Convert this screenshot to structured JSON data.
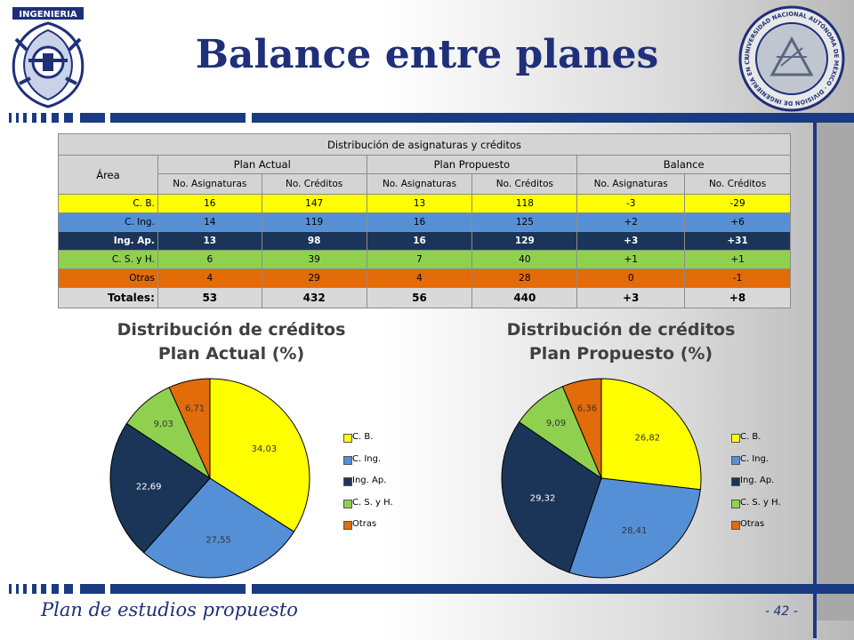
{
  "header": {
    "title": "Balance entre planes"
  },
  "logos": {
    "left_text": "INGENIERIA",
    "right_text": "UNIVERSIDAD NACIONAL AUTÓNOMA DE MÉXICO · DIVISIÓN DE INGENIERÍA EN CIENCIAS DE LA TIERRA"
  },
  "footer": {
    "title": "Plan de estudios propuesto",
    "page": "- 42 -"
  },
  "colors": {
    "cb": "#ffff00",
    "cing": "#5590d6",
    "ingap": "#1b3558",
    "csyh": "#8fd14f",
    "otras": "#e26b0a",
    "navy": "#1a3a82"
  },
  "table": {
    "title": "Distribución de asignaturas y créditos",
    "area_header": "Área",
    "groups": [
      "Plan Actual",
      "Plan Propuesto",
      "Balance"
    ],
    "subheaders": [
      "No. Asignaturas",
      "No. Créditos",
      "No. Asignaturas",
      "No. Créditos",
      "No. Asignaturas",
      "No. Créditos"
    ],
    "rows": [
      {
        "area": "C. B.",
        "cells": [
          "16",
          "147",
          "13",
          "118",
          "-3",
          "-29"
        ]
      },
      {
        "area": "C. Ing.",
        "cells": [
          "14",
          "119",
          "16",
          "125",
          "+2",
          "+6"
        ]
      },
      {
        "area": "Ing. Ap.",
        "cells": [
          "13",
          "98",
          "16",
          "129",
          "+3",
          "+31"
        ]
      },
      {
        "area": "C. S. y H.",
        "cells": [
          "6",
          "39",
          "7",
          "40",
          "+1",
          "+1"
        ]
      },
      {
        "area": "Otras",
        "cells": [
          "4",
          "29",
          "4",
          "28",
          "0",
          "-1"
        ]
      }
    ],
    "totals": {
      "area": "Totales:",
      "cells": [
        "53",
        "432",
        "56",
        "440",
        "+3",
        "+8"
      ]
    }
  },
  "chart_data": [
    {
      "type": "pie",
      "title": "Distribución de créditos Plan Actual (%)",
      "title_lines": [
        "Distribución de créditos",
        "Plan Actual (%)"
      ],
      "categories": [
        "C. B.",
        "C. Ing.",
        "Ing. Ap.",
        "C. S. y H.",
        "Otras"
      ],
      "values": [
        34.03,
        27.55,
        22.69,
        9.03,
        6.71
      ],
      "labels": [
        "34,03",
        "27,55",
        "22,69",
        "9,03",
        "6,71"
      ],
      "colors": [
        "#ffff00",
        "#5590d6",
        "#1b3558",
        "#8fd14f",
        "#e26b0a"
      ],
      "legend": "right"
    },
    {
      "type": "pie",
      "title": "Distribución de créditos Plan Propuesto (%)",
      "title_lines": [
        "Distribución de créditos",
        "Plan Propuesto (%)"
      ],
      "categories": [
        "C. B.",
        "C. Ing.",
        "Ing. Ap.",
        "C. S. y H.",
        "Otras"
      ],
      "values": [
        26.82,
        28.41,
        29.32,
        9.09,
        6.36
      ],
      "labels": [
        "26,82",
        "28,41",
        "29,32",
        "9,09",
        "6,36"
      ],
      "colors": [
        "#ffff00",
        "#5590d6",
        "#1b3558",
        "#8fd14f",
        "#e26b0a"
      ],
      "legend": "right"
    }
  ]
}
